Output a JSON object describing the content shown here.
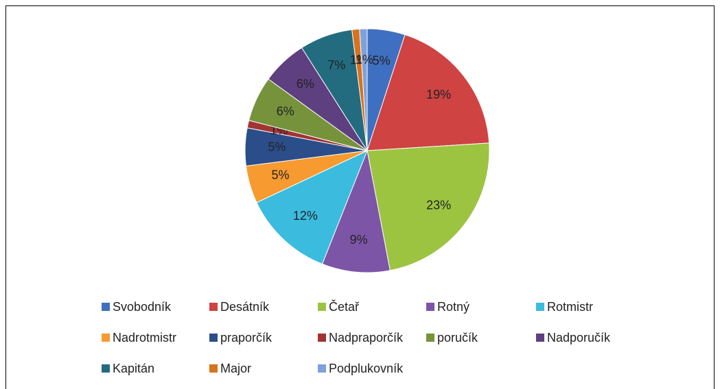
{
  "chart_data": {
    "type": "pie",
    "categories": [
      "Svobodník",
      "Desátník",
      "Četař",
      "Rotný",
      "Rotmistr",
      "Nadrotmistr",
      "praporčík",
      "Nadpraporčík",
      "poručík",
      "Nadporučík",
      "Kapitán",
      "Major",
      "Podplukovník"
    ],
    "values": [
      5,
      19,
      23,
      9,
      12,
      5,
      5,
      1,
      6,
      6,
      7,
      1,
      1
    ],
    "value_labels": [
      "5%",
      "19%",
      "23%",
      "9%",
      "12%",
      "5%",
      "5%",
      "1%",
      "6%",
      "6%",
      "7%",
      "1%",
      "1%"
    ],
    "colors": [
      "#3f6fc0",
      "#cf4343",
      "#9cc441",
      "#7d55a7",
      "#3bbcdf",
      "#f79a30",
      "#2b4e8a",
      "#a23434",
      "#76933c",
      "#5e3f80",
      "#236c80",
      "#d8731d",
      "#7ea1d9"
    ],
    "legend": "bottom"
  }
}
